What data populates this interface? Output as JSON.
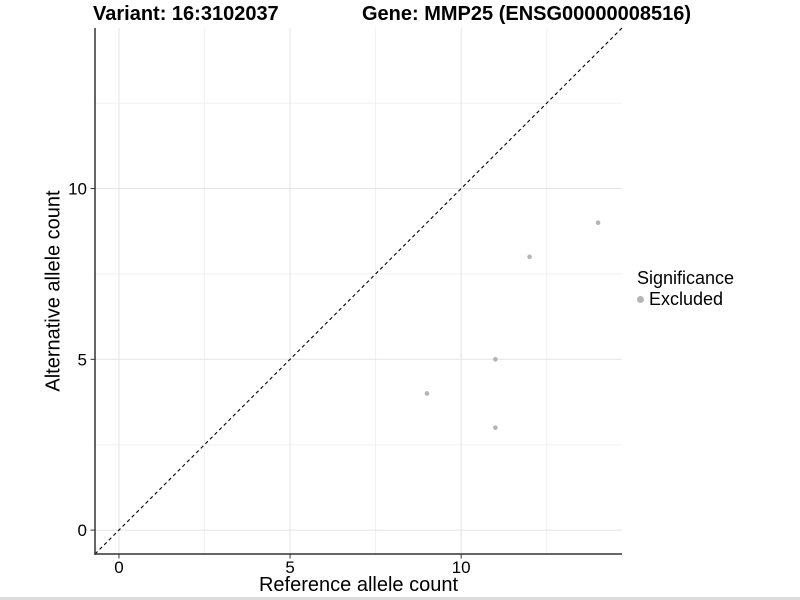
{
  "header": {
    "title_variant": "Variant: 16:3102037",
    "title_gene": "Gene: MMP25 (ENSG00000008516)"
  },
  "axes": {
    "x_label": "Reference allele count",
    "y_label": "Alternative allele count"
  },
  "legend": {
    "title": "Significance",
    "items": [
      {
        "label": "Excluded",
        "color": "#b5b5b5"
      }
    ]
  },
  "chart_data": {
    "type": "scatter",
    "title": "Variant: 16:3102037  |  Gene: MMP25 (ENSG00000008516)",
    "xlabel": "Reference allele count",
    "ylabel": "Alternative allele count",
    "xlim": [
      -0.7,
      14.7
    ],
    "ylim": [
      -0.7,
      14.7
    ],
    "x_major_ticks": [
      0,
      5,
      10
    ],
    "y_major_ticks": [
      0,
      5,
      10
    ],
    "x_minor_ticks": [
      2.5,
      7.5,
      12.5
    ],
    "y_minor_ticks": [
      2.5,
      7.5,
      12.5
    ],
    "grid": "major+minor",
    "legend_position": "right",
    "series": [
      {
        "name": "Excluded",
        "color": "#b5b5b5",
        "points": [
          {
            "x": 9,
            "y": 4
          },
          {
            "x": 11,
            "y": 3
          },
          {
            "x": 11,
            "y": 5
          },
          {
            "x": 12,
            "y": 8
          },
          {
            "x": 14,
            "y": 9
          }
        ]
      }
    ],
    "reference_line": {
      "type": "identity",
      "style": "dashed",
      "color": "#000000"
    }
  },
  "colors": {
    "point": "#b5b5b5",
    "axis_line": "#333333",
    "tick_label": "#000000",
    "grid_major": "#e4e4e4",
    "grid_minor": "#f0f0f0",
    "background": "#ffffff"
  }
}
